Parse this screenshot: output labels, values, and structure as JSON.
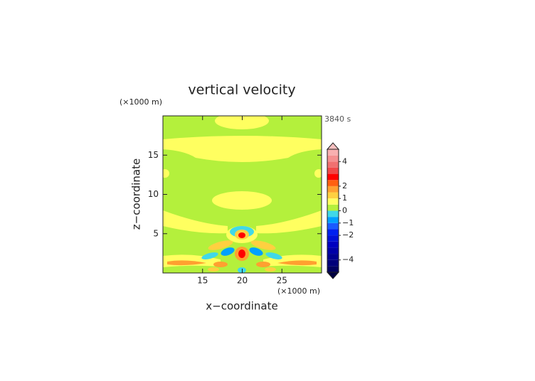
{
  "chart_data": {
    "type": "contour",
    "title": "vertical velocity",
    "x_label": "x−coordinate",
    "y_label": "z−coordinate",
    "x_unit": "(×1000 m)",
    "y_unit": "(×1000 m)",
    "time_label": "3840 s",
    "xlim": [
      10,
      30
    ],
    "ylim": [
      0,
      20
    ],
    "xticks": [
      15,
      20,
      25
    ],
    "yticks": [
      5,
      10,
      15
    ],
    "background_color": "#b4f03c",
    "colorbar": {
      "levels": [
        -5,
        -4.5,
        -4,
        -3.5,
        -3,
        -2.5,
        -2,
        -1.5,
        -1,
        -0.5,
        0,
        0.5,
        1,
        1.5,
        2,
        2.5,
        3,
        3.5,
        4,
        4.5,
        5
      ],
      "colors": [
        "#000060",
        "#00007a",
        "#000090",
        "#0000a8",
        "#0000c0",
        "#0010d8",
        "#0020f0",
        "#1a5aff",
        "#00a0ff",
        "#40d8e8",
        "#b4f03c",
        "#ffff60",
        "#ffd040",
        "#ffa030",
        "#ff6010",
        "#ff0000",
        "#f04848",
        "#f07070",
        "#f49090",
        "#f8b0b0"
      ],
      "under_color": "#000040",
      "over_color": "#f8c0c0",
      "ticks": [
        {
          "value": 4,
          "label": "4"
        },
        {
          "value": 2,
          "label": "2"
        },
        {
          "value": 1,
          "label": "1"
        },
        {
          "value": 0,
          "label": "0"
        },
        {
          "value": -1,
          "label": "−1"
        },
        {
          "value": -2,
          "label": "−2"
        },
        {
          "value": -4,
          "label": "−4"
        }
      ]
    }
  }
}
